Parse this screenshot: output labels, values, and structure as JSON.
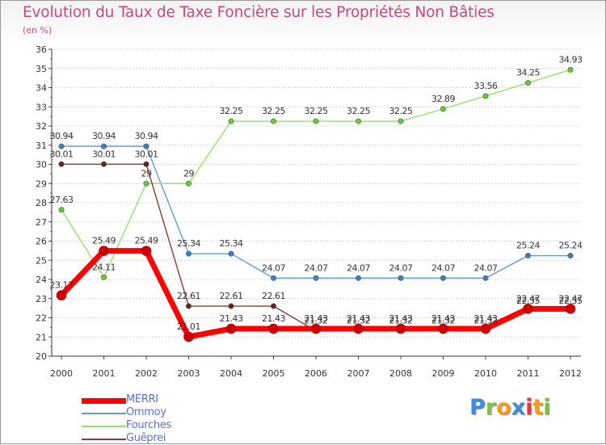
{
  "header": {
    "title": "Evolution du Taux de Taxe Foncière sur les Propriétés Non Bâties",
    "subtitle": "(en %)"
  },
  "chart_data": {
    "type": "line",
    "title": "Evolution du Taux de Taxe Foncière sur les Propriétés Non Bâties",
    "ylabel": "(en %)",
    "xlabel": "",
    "ylim": [
      20,
      36
    ],
    "yticks": [
      20,
      21,
      22,
      23,
      24,
      25,
      26,
      27,
      28,
      29,
      30,
      31,
      32,
      33,
      34,
      35,
      36
    ],
    "grid": "horizontal",
    "legend_position": "bottom-left",
    "x": [
      "2000",
      "2001",
      "2002",
      "2003",
      "2004",
      "2005",
      "2006",
      "2007",
      "2008",
      "2009",
      "2010",
      "2011",
      "2012"
    ],
    "series": [
      {
        "name": "MERRI",
        "color": "#ff0000",
        "marker": "#cc0000",
        "emphasis": true,
        "values": [
          23.17,
          25.49,
          25.49,
          21.01,
          21.43,
          21.43,
          21.43,
          21.43,
          21.43,
          21.43,
          21.43,
          22.47,
          22.47
        ],
        "labels": [
          "23.17",
          "25.49",
          "25.49",
          "21.01",
          "21.43",
          "21.43",
          "21.43",
          "21.43",
          "21.43",
          "21.43",
          "21.43",
          "22.47",
          "22.47"
        ]
      },
      {
        "name": "Ommoy",
        "color": "#6699cc",
        "marker": "#3b7fc4",
        "values": [
          30.94,
          30.94,
          30.94,
          25.34,
          25.34,
          24.07,
          24.07,
          24.07,
          24.07,
          24.07,
          24.07,
          25.24,
          25.24
        ],
        "labels": [
          "30.94",
          "30.94",
          "30.94",
          "25.34",
          "25.34",
          "24.07",
          "24.07",
          "24.07",
          "24.07",
          "24.07",
          "24.07",
          "25.24",
          "25.24"
        ]
      },
      {
        "name": "Fourches",
        "color": "#99dd77",
        "marker": "#66cc33",
        "values": [
          27.63,
          24.11,
          29,
          29,
          32.25,
          32.25,
          32.25,
          32.25,
          32.25,
          32.89,
          33.56,
          34.25,
          34.93
        ],
        "labels": [
          "27.63",
          "24.11",
          "29",
          "29",
          "32.25",
          "32.25",
          "32.25",
          "32.25",
          "32.25",
          "32.89",
          "33.56",
          "34.25",
          "34.93"
        ]
      },
      {
        "name": "Guêprei",
        "color": "#8b3a3a",
        "marker": "#6b2020",
        "values": [
          30.01,
          30.01,
          30.01,
          22.61,
          22.61,
          22.61,
          21.32,
          21.32,
          21.32,
          21.32,
          21.32,
          22.35,
          22.35
        ],
        "labels": [
          "30.01",
          "30.01",
          "30.01",
          "22.61",
          "22.61",
          "22.61",
          "21.32",
          "21.32",
          "21.32",
          "21.32",
          "21.32",
          "22.35",
          "22.35"
        ]
      }
    ]
  },
  "logo": {
    "letters": [
      "P",
      "r",
      "o",
      "x",
      "i",
      "t",
      "i"
    ],
    "colors": [
      "#3f8fd8",
      "#7cc242",
      "#f39b25",
      "#3f8fd8",
      "#e0393e",
      "#f39b25",
      "#7cc242"
    ]
  }
}
